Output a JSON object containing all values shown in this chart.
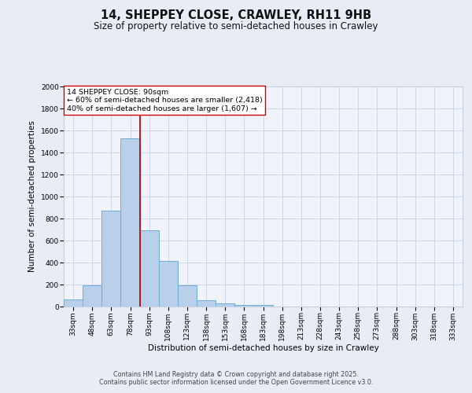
{
  "title1": "14, SHEPPEY CLOSE, CRAWLEY, RH11 9HB",
  "title2": "Size of property relative to semi-detached houses in Crawley",
  "xlabel": "Distribution of semi-detached houses by size in Crawley",
  "ylabel": "Number of semi-detached properties",
  "categories": [
    "33sqm",
    "48sqm",
    "63sqm",
    "78sqm",
    "93sqm",
    "108sqm",
    "123sqm",
    "138sqm",
    "153sqm",
    "168sqm",
    "183sqm",
    "198sqm",
    "213sqm",
    "228sqm",
    "243sqm",
    "258sqm",
    "273sqm",
    "288sqm",
    "303sqm",
    "318sqm",
    "333sqm"
  ],
  "values": [
    65,
    195,
    870,
    1530,
    690,
    415,
    195,
    60,
    30,
    15,
    15,
    0,
    0,
    0,
    0,
    0,
    0,
    0,
    0,
    0,
    0
  ],
  "bar_color": "#b8d0ea",
  "bar_edge_color": "#6aaed6",
  "bar_width": 1.0,
  "red_line_color": "#cc0000",
  "annotation_line1": "14 SHEPPEY CLOSE: 90sqm",
  "annotation_line2": "← 60% of semi-detached houses are smaller (2,418)",
  "annotation_line3": "40% of semi-detached houses are larger (1,607) →",
  "annotation_box_color": "#ffffff",
  "annotation_box_edge_color": "#cc0000",
  "ylim": [
    0,
    2000
  ],
  "yticks": [
    0,
    200,
    400,
    600,
    800,
    1000,
    1200,
    1400,
    1600,
    1800,
    2000
  ],
  "bg_color": "#e8edf5",
  "plot_bg_color": "#f0f4fa",
  "grid_color": "#c8d0e0",
  "footer_text": "Contains HM Land Registry data © Crown copyright and database right 2025.\nContains public sector information licensed under the Open Government Licence v3.0.",
  "title_fontsize": 10.5,
  "subtitle_fontsize": 8.5,
  "axis_label_fontsize": 7.5,
  "tick_fontsize": 6.5,
  "annotation_fontsize": 6.8,
  "footer_fontsize": 5.8
}
